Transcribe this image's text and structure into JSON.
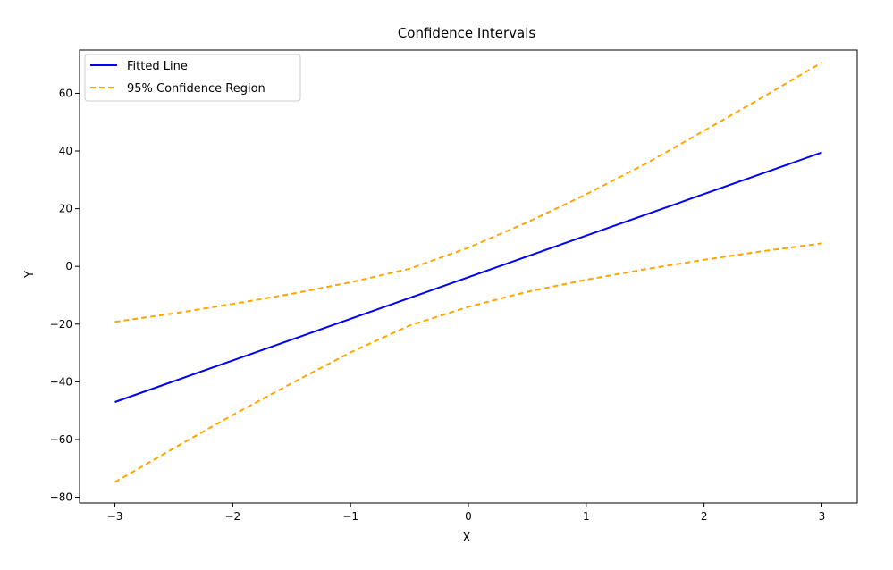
{
  "chart_data": {
    "type": "line",
    "title": "Confidence Intervals",
    "xlabel": "X",
    "ylabel": "Y",
    "xlim": [
      -3.3,
      3.3
    ],
    "ylim": [
      -82,
      75
    ],
    "xticks": [
      -3,
      -2,
      -1,
      0,
      1,
      2,
      3
    ],
    "xtick_labels": [
      "−3",
      "−2",
      "−1",
      "0",
      "1",
      "2",
      "3"
    ],
    "yticks": [
      -80,
      -60,
      -40,
      -20,
      0,
      20,
      40,
      60
    ],
    "ytick_labels": [
      "−80",
      "−60",
      "−40",
      "−20",
      "0",
      "20",
      "40",
      "60"
    ],
    "grid": false,
    "legend": "top-left",
    "series": [
      {
        "name": "Fitted Line",
        "color": "#0000ff",
        "style": "solid",
        "x": [
          -3,
          3
        ],
        "y": [
          -47,
          39.5
        ]
      },
      {
        "name": "95% Confidence Region",
        "color": "#ffa500",
        "style": "dashed",
        "x": [
          -3,
          -2.5,
          -2,
          -1.5,
          -1,
          -0.5,
          0,
          0.5,
          1,
          1.5,
          2,
          2.5,
          3
        ],
        "y": [
          -19.2,
          -16.3,
          -13,
          -9.5,
          -5.5,
          -0.8,
          6.5,
          15.3,
          25,
          35.5,
          47,
          58.7,
          70.7
        ]
      },
      {
        "name": "",
        "color": "#ffa500",
        "style": "dashed",
        "x": [
          -3,
          -2.5,
          -2,
          -1.5,
          -1,
          -0.5,
          0,
          0.5,
          1,
          1.5,
          2,
          2.5,
          3
        ],
        "y": [
          -74.8,
          -63,
          -51.5,
          -40.5,
          -29.8,
          -20.5,
          -14,
          -8.8,
          -4.6,
          -1,
          2.3,
          5.3,
          8
        ]
      }
    ]
  }
}
